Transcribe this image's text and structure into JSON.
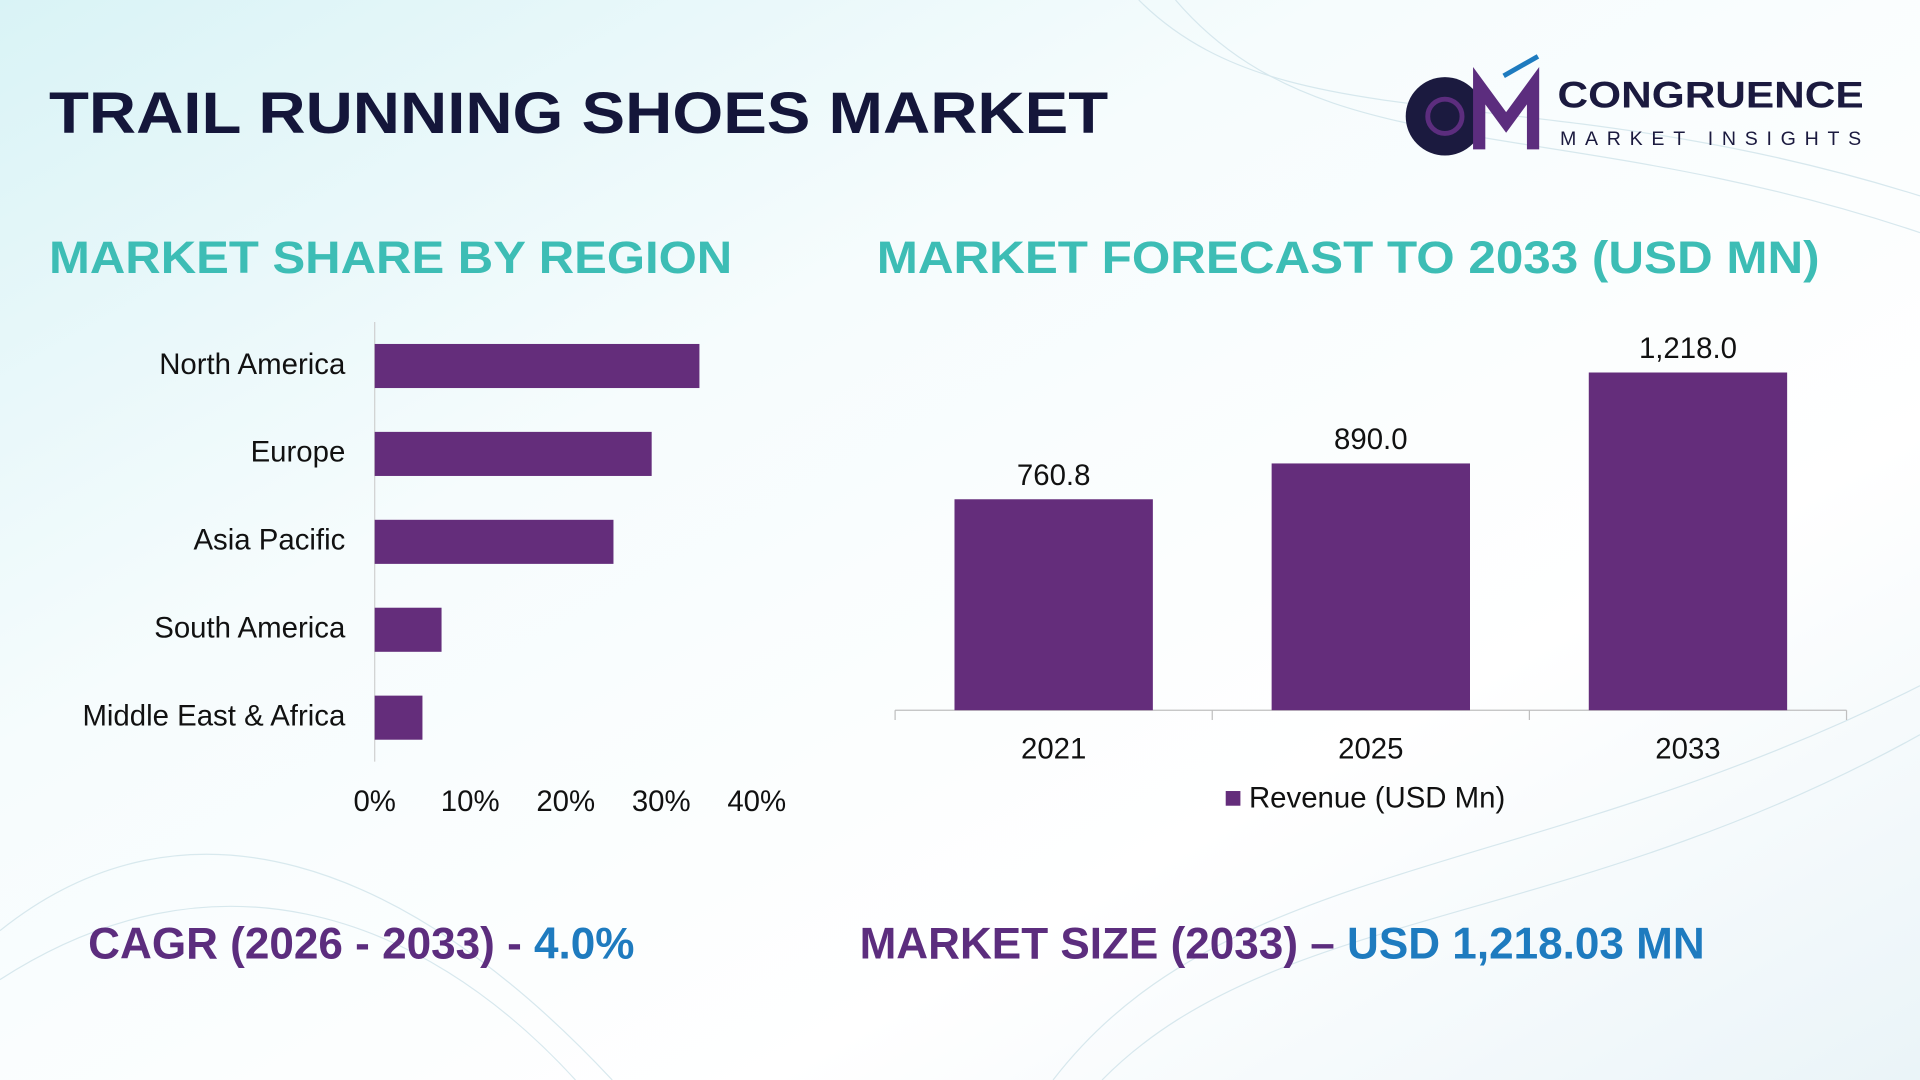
{
  "header": {
    "title": "TRAIL RUNNING SHOES MARKET",
    "logo": {
      "name": "CONGRUENCE",
      "tagline": "MARKET INSIGHTS"
    }
  },
  "chart_data": [
    {
      "type": "hbar",
      "title": "MARKET SHARE BY REGION",
      "categories": [
        "North America",
        "Europe",
        "Asia Pacific",
        "South America",
        "Middle East & Africa"
      ],
      "values": [
        34,
        29,
        25,
        7,
        5
      ],
      "color": "#642d7b",
      "xlim": [
        0,
        40
      ],
      "xticks": [
        {
          "value": 0,
          "label": "0%"
        },
        {
          "value": 10,
          "label": "10%"
        },
        {
          "value": 20,
          "label": "20%"
        },
        {
          "value": 30,
          "label": "30%"
        },
        {
          "value": 40,
          "label": "40%"
        }
      ]
    },
    {
      "type": "bar",
      "title": "MARKET FORECAST TO 2033 (USD MN)",
      "categories": [
        "2021",
        "2025",
        "2033"
      ],
      "series": [
        {
          "name": "Revenue (USD Mn)",
          "color": "#642d7b",
          "values": [
            760.8,
            890.0,
            1218.0
          ],
          "value_labels": [
            "760.8",
            "890.0",
            "1,218.0"
          ]
        }
      ],
      "ylim": [
        0,
        1400
      ],
      "legend": "bottom"
    }
  ],
  "footer": {
    "cagr": {
      "label": "CAGR (2026 - 2033) - ",
      "value": "4.0%"
    },
    "market_size": {
      "label": "MARKET SIZE (2033) – ",
      "value": "USD 1,218.03 MN"
    }
  }
}
